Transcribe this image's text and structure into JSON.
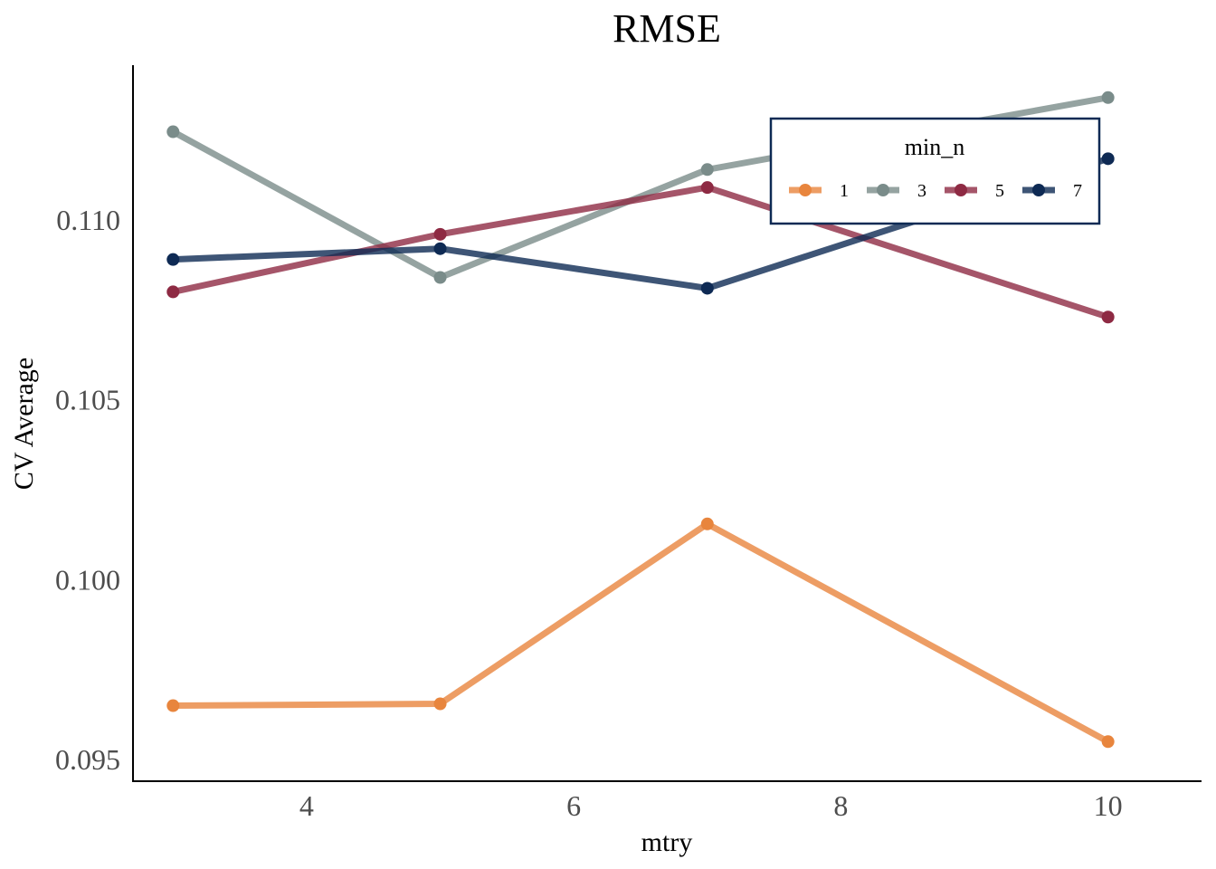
{
  "chart_data": {
    "type": "line",
    "title": "RMSE",
    "xlabel": "mtry",
    "ylabel": "CV Average",
    "xlim": [
      2.7,
      10.7
    ],
    "ylim": [
      0.0944,
      0.1143
    ],
    "x_ticks": [
      4,
      6,
      8,
      10
    ],
    "y_ticks": [
      0.095,
      0.1,
      0.105,
      0.11
    ],
    "y_tick_labels": [
      "0.095",
      "0.100",
      "0.105",
      "0.110"
    ],
    "grid": false,
    "legend": {
      "title": "min_n",
      "placement": "top-right",
      "orientation": "horizontal"
    },
    "x": [
      3,
      5,
      7,
      10
    ],
    "series": [
      {
        "name": "1",
        "color": "#E8853D",
        "values": [
          0.0965,
          0.09655,
          0.10155,
          0.0955
        ]
      },
      {
        "name": "3",
        "color": "#7A8C8A",
        "values": [
          0.11245,
          0.1084,
          0.1114,
          0.1134
        ]
      },
      {
        "name": "5",
        "color": "#8E2A43",
        "values": [
          0.108,
          0.1096,
          0.1109,
          0.1073
        ]
      },
      {
        "name": "7",
        "color": "#0E2A54",
        "values": [
          0.1089,
          0.1092,
          0.1081,
          0.1117
        ]
      }
    ]
  }
}
